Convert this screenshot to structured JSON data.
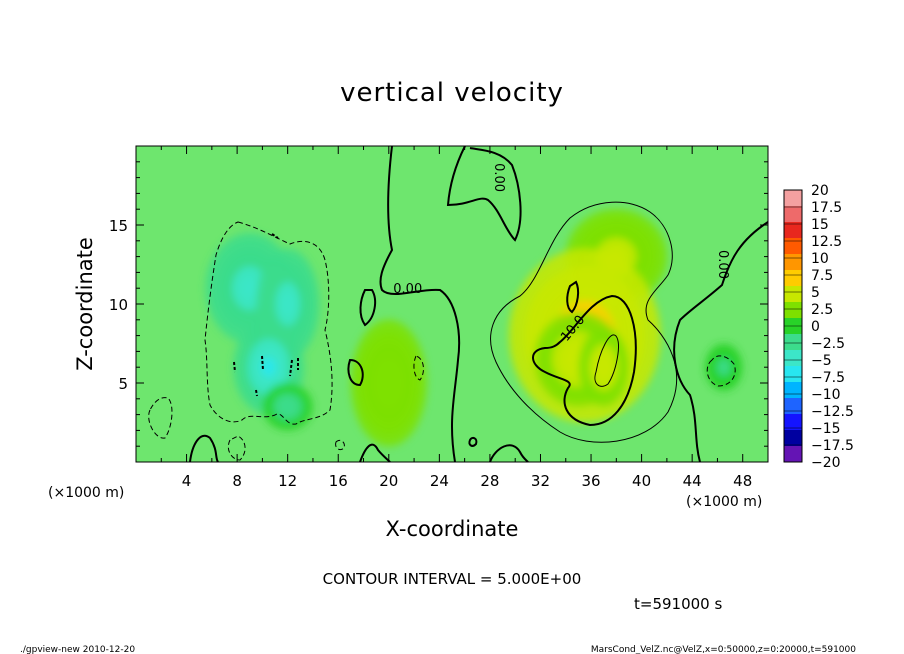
{
  "chart_data": {
    "type": "heatmap",
    "title": "vertical velocity",
    "xlabel": "X-coordinate",
    "ylabel": "Z-coordinate",
    "x_unit": "(×1000 m)",
    "y_unit": "(×1000 m)",
    "xlim": [
      0,
      50
    ],
    "ylim": [
      0,
      20
    ],
    "x_ticks": [
      4,
      8,
      12,
      16,
      20,
      24,
      28,
      32,
      36,
      40,
      44,
      48
    ],
    "y_ticks": [
      5,
      10,
      15
    ],
    "contour_interval_text": "CONTOUR INTERVAL = 5.000E+00",
    "time_text": "t=591000 s",
    "footer_left": "./gpview-new  2010-12-20",
    "footer_right": "MarsCond_VelZ.nc@VelZ,x=0:50000,z=0:20000,t=591000",
    "contour_labels": [
      {
        "text": "0.00",
        "x": 21.5,
        "y": 11.0,
        "rotate": 0
      },
      {
        "text": "0.00",
        "x": 28.8,
        "y": 18.0,
        "rotate": 90
      },
      {
        "text": "0.00",
        "x": 46.5,
        "y": 12.5,
        "rotate": 90
      },
      {
        "text": "10.0",
        "x": 34.5,
        "y": 8.5,
        "rotate": -50
      }
    ],
    "colorbar": {
      "levels": [
        "20",
        "17.5",
        "15",
        "12.5",
        "10",
        "7.5",
        "5",
        "2.5",
        "0",
        "-2.5",
        "-5",
        "-7.5",
        "-10",
        "-12.5",
        "-15",
        "-17.5",
        "-20"
      ],
      "colors": [
        "#f4a0a0",
        "#ee6a6a",
        "#e8281e",
        "#ff5a00",
        "#ff9600",
        "#ffcc00",
        "#c8e800",
        "#7ee000",
        "#28d228",
        "#3cdc8c",
        "#3ce6c8",
        "#28e6f0",
        "#00b4ff",
        "#1e64ff",
        "#1414ff",
        "#0000a0",
        "#6414b4"
      ]
    },
    "background_color": "#6ee66e",
    "fields": [
      {
        "cx": 20,
        "cy": 5,
        "rx": 3,
        "ry": 4,
        "value": 2
      },
      {
        "cx": 9,
        "cy": 11,
        "rx": 3.5,
        "ry": 3.5,
        "value": -6.5
      },
      {
        "cx": 12,
        "cy": 10,
        "rx": 2.5,
        "ry": 3.5,
        "value": -6
      },
      {
        "cx": 10.5,
        "cy": 6,
        "rx": 2.8,
        "ry": 3,
        "value": -8
      },
      {
        "cx": 12,
        "cy": 3.5,
        "rx": 2,
        "ry": 1.5,
        "value": -4
      },
      {
        "cx": 38,
        "cy": 13,
        "rx": 4,
        "ry": 3,
        "value": 3
      },
      {
        "cx": 35.5,
        "cy": 8,
        "rx": 6,
        "ry": 5.5,
        "value": 6
      },
      {
        "cx": 35,
        "cy": 6.5,
        "rx": 3.5,
        "ry": 3,
        "value": 4
      },
      {
        "cx": 37,
        "cy": 6,
        "rx": 2,
        "ry": 2.5,
        "value": 4
      },
      {
        "cx": 46.5,
        "cy": 6,
        "rx": 1.5,
        "ry": 1.5,
        "value": -3
      }
    ]
  }
}
